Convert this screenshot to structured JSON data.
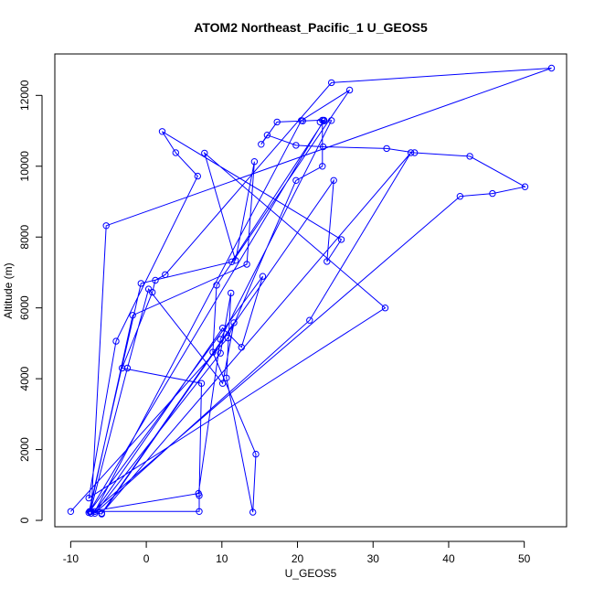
{
  "chart_data": {
    "type": "line",
    "title": "ATOM2 Northeast_Pacific_1 U_GEOS5",
    "xlabel": "U_GEOS5",
    "ylabel": "Altitude (m)",
    "xlim": [
      -12.1,
      55.6
    ],
    "ylim": [
      -180,
      13170
    ],
    "x_ticks": [
      -10,
      0,
      10,
      20,
      30,
      40,
      50
    ],
    "y_ticks": [
      0,
      2000,
      4000,
      6000,
      8000,
      10000,
      12000
    ],
    "x_tick_labels": [
      "-10",
      "0",
      "10",
      "20",
      "30",
      "40",
      "50"
    ],
    "y_tick_labels": [
      "0",
      "2000",
      "4000",
      "6000",
      "8000",
      "10000",
      "12000"
    ],
    "grid": false,
    "marker": "open-circle",
    "line_color": "#0000ff",
    "series": [
      {
        "x": [
          -10.0,
          10.8,
          19.8,
          23.3,
          23.3,
          20.7,
          17.3,
          15.2,
          16.0,
          19.8,
          23.4,
          31.8,
          35.5,
          42.8,
          50.1,
          45.8,
          41.5,
          -7.3,
          -5.3,
          53.6,
          24.5,
          2.5,
          1.2,
          0.8,
          -3.2,
          7.3,
          7.0,
          7.0,
          -7.3,
          -5.9,
          24.8,
          23.9,
          25.8,
          2.1,
          3.9,
          6.8,
          -4.0,
          -7.6,
          31.6,
          7.7,
          11.8,
          14.3,
          13.3,
          -1.8,
          -7.5,
          15.4,
          12.6,
          10.1,
          -6.8,
          20.5,
          26.9,
          9.3,
          8.8,
          14.5,
          14.1,
          10.6,
          11.2,
          9.8,
          -6.8,
          21.6,
          35.0,
          -5.9,
          11.6,
          10.1,
          0.3,
          -2.5,
          -7.4,
          6.9,
          9.8,
          24.5,
          23.5,
          11.3,
          -0.7,
          -7.6,
          23.5,
          23.0
        ]
      }
    ],
    "y": [
      250,
      5150,
      9600,
      10000,
      11300,
      11280,
      11250,
      10620,
      10880,
      10590,
      10550,
      10500,
      10380,
      10280,
      9420,
      9230,
      9150,
      200,
      8320,
      12770,
      12360,
      6940,
      6780,
      6440,
      4300,
      3870,
      700,
      250,
      250,
      180,
      9600,
      7310,
      7930,
      10980,
      10380,
      9720,
      5060,
      630,
      6000,
      10370,
      7340,
      10130,
      7230,
      5790,
      250,
      6890,
      4890,
      5430,
      250,
      11290,
      12150,
      6640,
      4750,
      1870,
      230,
      4020,
      6420,
      4720,
      200,
      5650,
      10380,
      200,
      5580,
      3870,
      6530,
      4300,
      250,
      760,
      5110,
      11290,
      11280,
      7300,
      6690,
      220,
      11300,
      11250
    ]
  }
}
